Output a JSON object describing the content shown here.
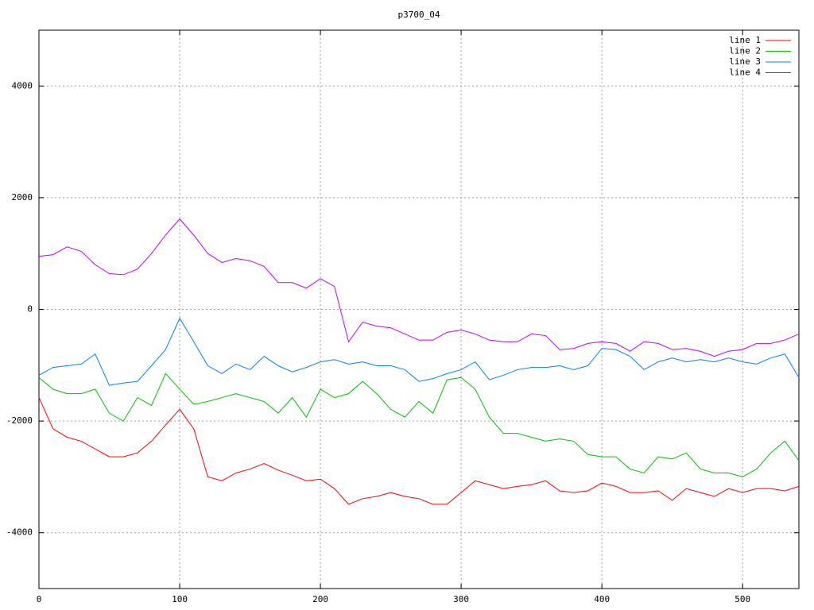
{
  "chart_data": {
    "type": "line",
    "title": "p3700_04",
    "x": [
      0,
      10,
      20,
      30,
      40,
      50,
      60,
      70,
      80,
      90,
      100,
      110,
      120,
      130,
      140,
      150,
      160,
      170,
      180,
      190,
      200,
      210,
      220,
      230,
      240,
      250,
      260,
      270,
      280,
      290,
      300,
      310,
      320,
      330,
      340,
      350,
      360,
      370,
      380,
      390,
      400,
      410,
      420,
      430,
      440,
      450,
      460,
      470,
      480,
      490,
      500,
      510,
      520,
      530,
      540
    ],
    "series": [
      {
        "name": "line 1",
        "color": "#ff0000",
        "values": [
          -1580,
          -2140,
          -2290,
          -2360,
          -2500,
          -2640,
          -2640,
          -2570,
          -2360,
          -2070,
          -1790,
          -2140,
          -3000,
          -3070,
          -2930,
          -2860,
          -2760,
          -2880,
          -2970,
          -3070,
          -3040,
          -3210,
          -3490,
          -3390,
          -3350,
          -3280,
          -3350,
          -3390,
          -3490,
          -3490,
          -3280,
          -3070,
          -3140,
          -3210,
          -3170,
          -3140,
          -3070,
          -3250,
          -3280,
          -3250,
          -3110,
          -3170,
          -3280,
          -3280,
          -3250,
          -3420,
          -3210,
          -3280,
          -3350,
          -3210,
          -3280,
          -3210,
          -3210,
          -3250,
          -3170
        ]
      },
      {
        "name": "line 2",
        "color": "#00c000",
        "values": [
          -1220,
          -1430,
          -1510,
          -1510,
          -1430,
          -1860,
          -2000,
          -1580,
          -1720,
          -1150,
          -1430,
          -1700,
          -1650,
          -1580,
          -1510,
          -1580,
          -1650,
          -1860,
          -1580,
          -1930,
          -1430,
          -1580,
          -1510,
          -1290,
          -1510,
          -1790,
          -1930,
          -1650,
          -1860,
          -1260,
          -1220,
          -1430,
          -1930,
          -2220,
          -2220,
          -2290,
          -2360,
          -2320,
          -2360,
          -2600,
          -2640,
          -2640,
          -2860,
          -2930,
          -2640,
          -2680,
          -2570,
          -2860,
          -2930,
          -2930,
          -3000,
          -2860,
          -2570,
          -2360,
          -2710
        ]
      },
      {
        "name": "line 3",
        "color": "#0080ff",
        "values": [
          -1180,
          -1040,
          -1010,
          -980,
          -800,
          -1360,
          -1320,
          -1290,
          -1010,
          -720,
          -160,
          -580,
          -1010,
          -1150,
          -980,
          -1080,
          -840,
          -1010,
          -1120,
          -1040,
          -940,
          -900,
          -980,
          -940,
          -1010,
          -1010,
          -1080,
          -1290,
          -1240,
          -1150,
          -1080,
          -940,
          -1260,
          -1180,
          -1080,
          -1040,
          -1040,
          -1010,
          -1080,
          -1010,
          -700,
          -720,
          -840,
          -1080,
          -940,
          -870,
          -940,
          -900,
          -940,
          -870,
          -940,
          -980,
          -870,
          -800,
          -1220
        ]
      },
      {
        "name": "line 4",
        "color": "#c000ff",
        "values": [
          950,
          980,
          1120,
          1040,
          800,
          640,
          620,
          720,
          1000,
          1330,
          1620,
          1330,
          1000,
          840,
          910,
          870,
          770,
          480,
          480,
          380,
          550,
          410,
          -580,
          -230,
          -300,
          -330,
          -440,
          -550,
          -550,
          -410,
          -370,
          -440,
          -550,
          -580,
          -580,
          -440,
          -470,
          -720,
          -700,
          -610,
          -580,
          -610,
          -750,
          -580,
          -610,
          -720,
          -700,
          -750,
          -840,
          -750,
          -720,
          -610,
          -610,
          -550,
          -440
        ]
      }
    ],
    "xlim": [
      0,
      540
    ],
    "ylim": [
      -5000,
      5000
    ],
    "xticks": [
      0,
      100,
      200,
      300,
      400,
      500
    ],
    "yticks": [
      -4000,
      -2000,
      0,
      2000,
      4000
    ],
    "grid": true,
    "legend": "top-right"
  }
}
